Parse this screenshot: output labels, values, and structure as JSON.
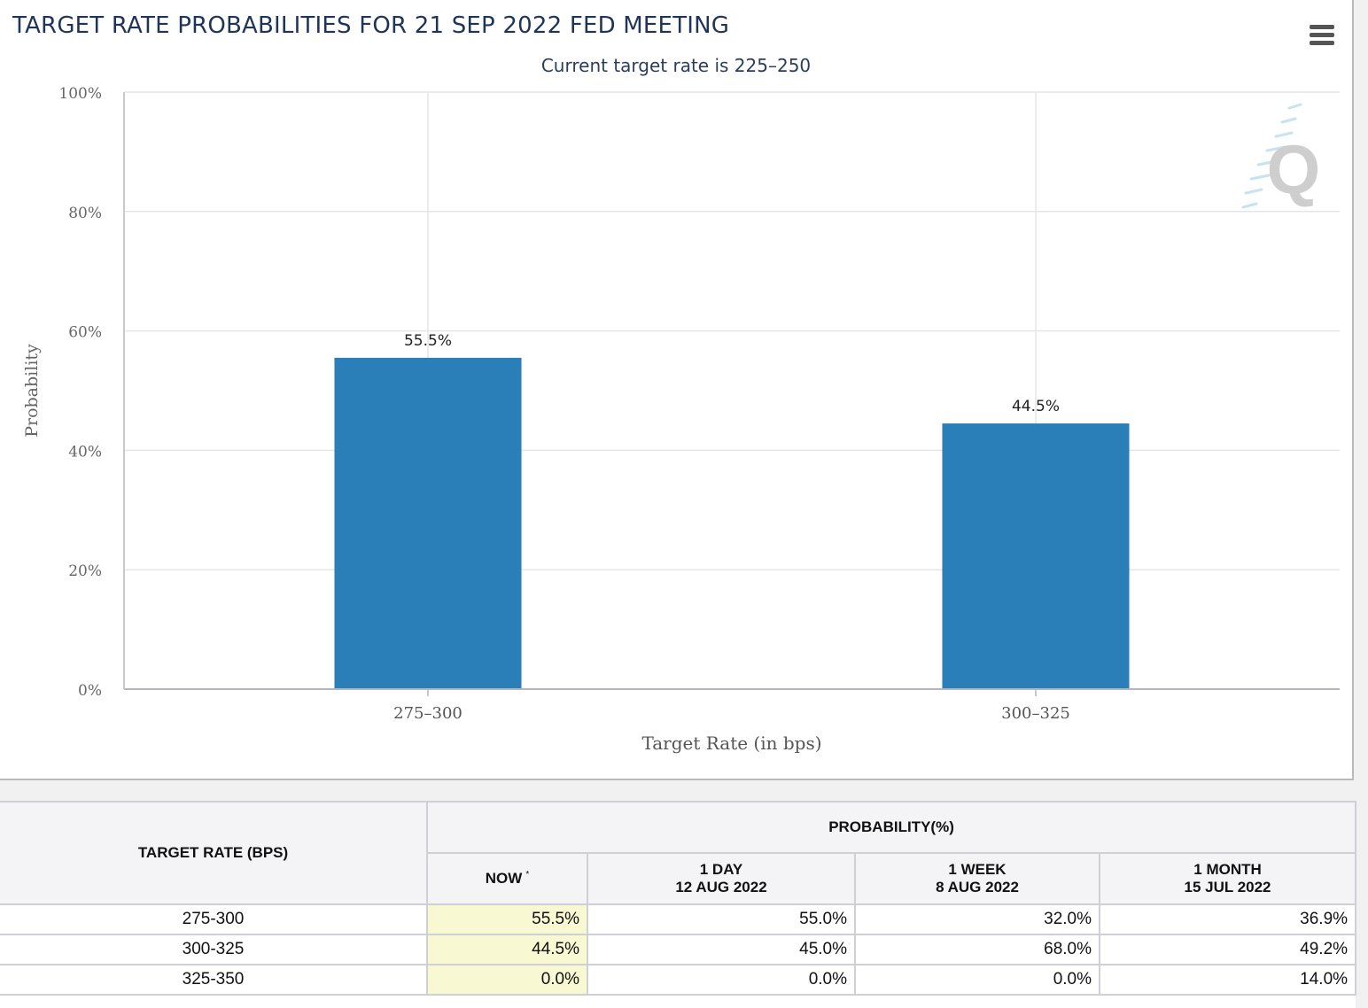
{
  "chart": {
    "title": "TARGET RATE PROBABILITIES FOR 21 SEP 2022 FED MEETING",
    "subtitle": "Current target rate is 225–250",
    "menu_icon": "hamburger-menu-icon",
    "watermark_icon": "cme-fedwatch-q-logo-icon"
  },
  "chart_data": {
    "type": "bar",
    "title": "TARGET RATE PROBABILITIES FOR 21 SEP 2022 FED MEETING",
    "subtitle": "Current target rate is 225–250",
    "categories": [
      "275–300",
      "300–325"
    ],
    "values": [
      55.5,
      44.5
    ],
    "data_labels": [
      "55.5%",
      "44.5%"
    ],
    "xlabel": "Target Rate (in bps)",
    "ylabel": "Probability",
    "ylim": [
      0,
      100
    ],
    "yticks": [
      0,
      20,
      40,
      60,
      80,
      100
    ],
    "ytick_labels": [
      "0%",
      "20%",
      "40%",
      "60%",
      "80%",
      "100%"
    ],
    "grid": true,
    "bar_color": "#2a7fb8"
  },
  "table": {
    "rate_header": "TARGET RATE (BPS)",
    "prob_header": "PROBABILITY(%)",
    "columns": [
      {
        "label": "NOW",
        "date": "",
        "mark": "*"
      },
      {
        "label": "1 DAY",
        "date": "12 AUG 2022"
      },
      {
        "label": "1 WEEK",
        "date": "8 AUG 2022"
      },
      {
        "label": "1 MONTH",
        "date": "15 JUL 2022"
      }
    ],
    "rows": [
      {
        "rate": "275-300",
        "values": [
          "55.5%",
          "55.0%",
          "32.0%",
          "36.9%"
        ]
      },
      {
        "rate": "300-325",
        "values": [
          "44.5%",
          "45.0%",
          "68.0%",
          "49.2%"
        ]
      },
      {
        "rate": "325-350",
        "values": [
          "0.0%",
          "0.0%",
          "0.0%",
          "14.0%"
        ]
      }
    ]
  }
}
